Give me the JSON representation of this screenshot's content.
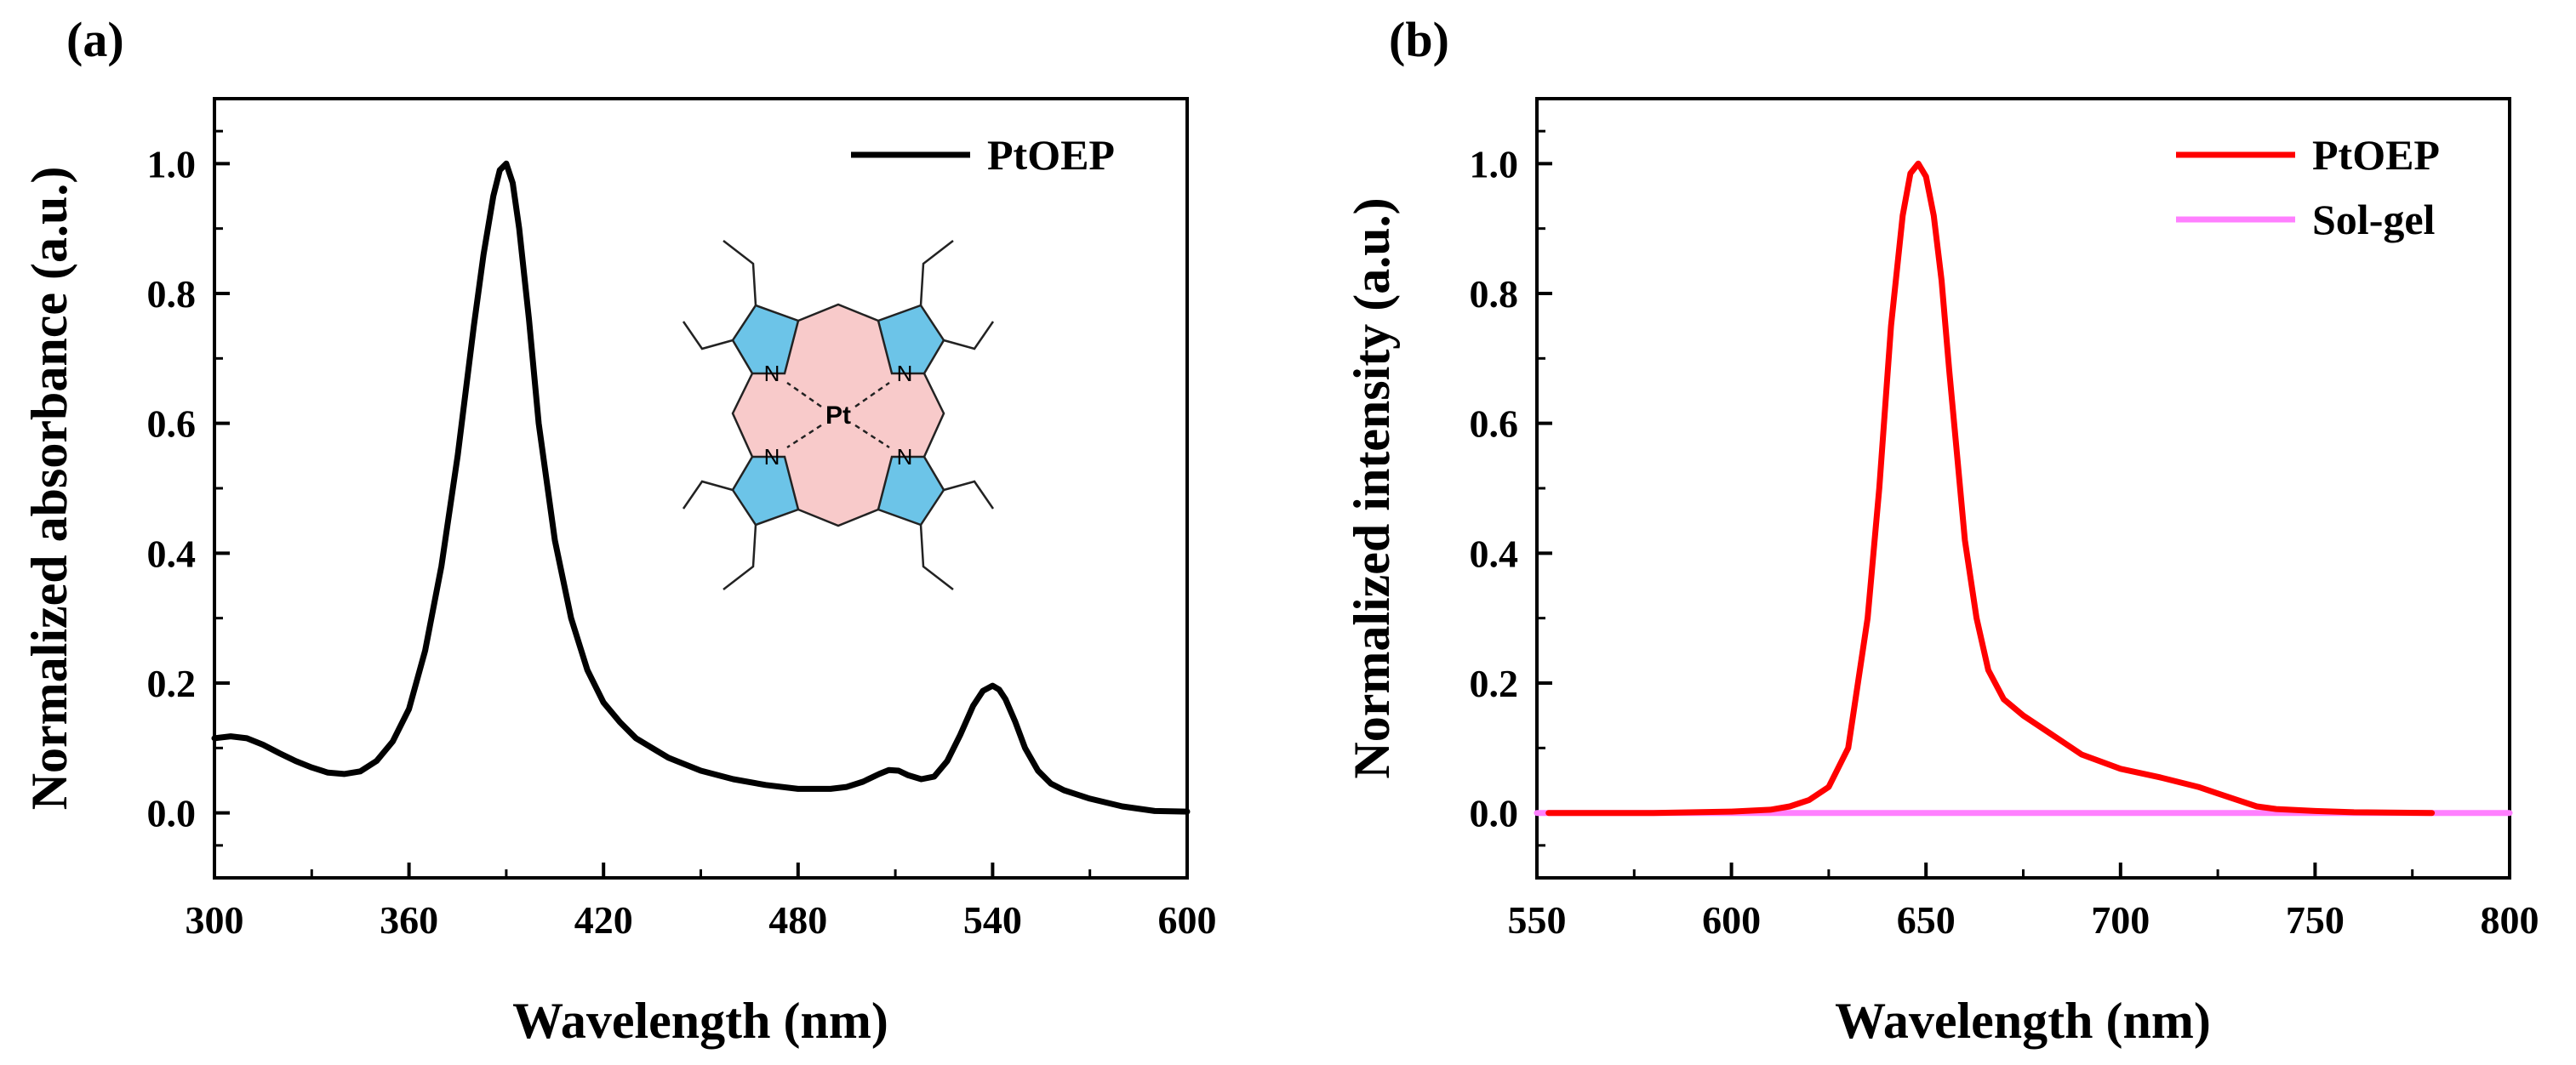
{
  "chart_data": [
    {
      "type": "line",
      "panel_label": "(a)",
      "xlabel": "Wavelength (nm)",
      "ylabel": "Normalized absorbance (a.u.)",
      "xlim": [
        300,
        600
      ],
      "ylim": [
        -0.1,
        1.1
      ],
      "x_ticks": [
        300,
        360,
        420,
        480,
        540,
        600
      ],
      "x_tick_labels": [
        "300",
        "360",
        "420",
        "480",
        "540",
        "600"
      ],
      "y_ticks": [
        0.0,
        0.2,
        0.4,
        0.6,
        0.8,
        1.0
      ],
      "y_tick_labels": [
        "0.0",
        "0.2",
        "0.4",
        "0.6",
        "0.8",
        "1.0"
      ],
      "grid": false,
      "legend_position": "top-right",
      "inset": {
        "type": "molecular-structure",
        "central_atom": "Pt",
        "nitrogen_label": "N"
      },
      "series": [
        {
          "name": "PtOEP",
          "color": "#000000",
          "x": [
            300,
            305,
            310,
            315,
            320,
            325,
            330,
            335,
            340,
            345,
            350,
            355,
            360,
            365,
            370,
            375,
            380,
            383,
            386,
            388,
            390,
            392,
            394,
            397,
            400,
            405,
            410,
            415,
            420,
            425,
            430,
            440,
            450,
            460,
            470,
            480,
            490,
            495,
            500,
            505,
            508,
            511,
            514,
            518,
            522,
            526,
            530,
            534,
            537,
            540,
            542,
            544,
            547,
            550,
            554,
            558,
            562,
            570,
            580,
            590,
            600
          ],
          "y": [
            0.115,
            0.118,
            0.115,
            0.105,
            0.092,
            0.08,
            0.07,
            0.062,
            0.06,
            0.064,
            0.08,
            0.11,
            0.16,
            0.25,
            0.38,
            0.55,
            0.75,
            0.86,
            0.95,
            0.99,
            1.0,
            0.97,
            0.9,
            0.76,
            0.6,
            0.42,
            0.3,
            0.22,
            0.17,
            0.14,
            0.115,
            0.085,
            0.065,
            0.052,
            0.043,
            0.037,
            0.037,
            0.04,
            0.048,
            0.06,
            0.066,
            0.065,
            0.058,
            0.052,
            0.056,
            0.08,
            0.12,
            0.165,
            0.188,
            0.196,
            0.19,
            0.175,
            0.14,
            0.1,
            0.065,
            0.045,
            0.035,
            0.022,
            0.01,
            0.003,
            0.002
          ]
        }
      ]
    },
    {
      "type": "line",
      "panel_label": "(b)",
      "xlabel": "Wavelength (nm)",
      "ylabel": "Normalized intensity (a.u.)",
      "xlim": [
        550,
        800
      ],
      "ylim": [
        -0.1,
        1.1
      ],
      "x_ticks": [
        550,
        600,
        650,
        700,
        750,
        800
      ],
      "x_tick_labels": [
        "550",
        "600",
        "650",
        "700",
        "750",
        "800"
      ],
      "y_ticks": [
        0.0,
        0.2,
        0.4,
        0.6,
        0.8,
        1.0
      ],
      "y_tick_labels": [
        "0.0",
        "0.2",
        "0.4",
        "0.6",
        "0.8",
        "1.0"
      ],
      "grid": false,
      "legend_position": "top-right",
      "series": [
        {
          "name": "PtOEP",
          "color": "#ff0000",
          "x": [
            553,
            580,
            600,
            610,
            615,
            620,
            625,
            630,
            635,
            638,
            641,
            644,
            646,
            648,
            650,
            652,
            654,
            656,
            658,
            660,
            663,
            666,
            670,
            675,
            680,
            690,
            700,
            710,
            720,
            725,
            730,
            735,
            740,
            750,
            760,
            780
          ],
          "y": [
            0.0,
            0.0,
            0.002,
            0.005,
            0.01,
            0.02,
            0.04,
            0.1,
            0.3,
            0.5,
            0.75,
            0.92,
            0.985,
            1.0,
            0.98,
            0.92,
            0.82,
            0.68,
            0.55,
            0.42,
            0.3,
            0.22,
            0.175,
            0.15,
            0.13,
            0.09,
            0.068,
            0.055,
            0.04,
            0.03,
            0.02,
            0.01,
            0.006,
            0.003,
            0.001,
            0.0
          ]
        },
        {
          "name": "Sol-gel",
          "color": "#ff80ff",
          "x": [
            550,
            800
          ],
          "y": [
            0.0,
            0.0
          ]
        }
      ]
    }
  ]
}
